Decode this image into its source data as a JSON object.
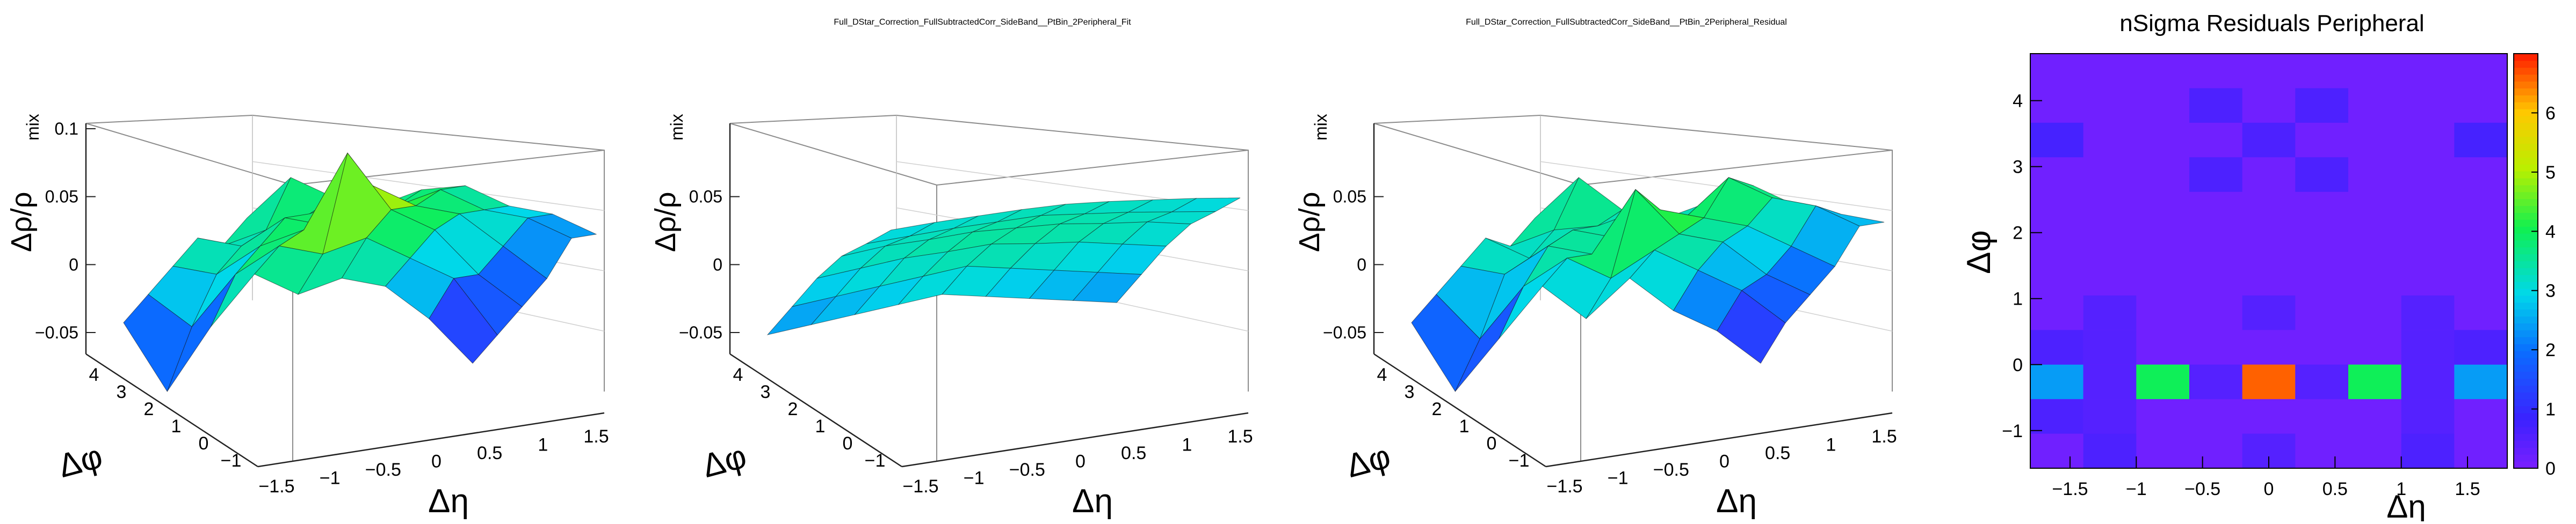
{
  "chart_data": [
    {
      "type": "surface3d",
      "title": "",
      "zlabel": "Δρ/ρ",
      "zlabel_sub": "mix",
      "xlabel": "Δη",
      "ylabel": "Δφ",
      "x_ticks": [
        "−1.5",
        "−1",
        "−0.5",
        "0",
        "0.5",
        "1",
        "1.5"
      ],
      "y_ticks": [
        "−1",
        "0",
        "1",
        "2",
        "3",
        "4"
      ],
      "z_ticks": [
        "−0.05",
        "0",
        "0.05",
        "0.1"
      ],
      "zlim": [
        -0.08,
        0.11
      ],
      "colorscale": [
        "#2a00ff",
        "#00c8ff",
        "#00ff6a",
        "#c8ff00",
        "#ff0000"
      ],
      "description_values": {
        "eta": [
          -1.6,
          -1.2,
          -0.8,
          -0.4,
          0,
          0.4,
          0.8,
          1.2,
          1.6
        ],
        "phi_rows": [
          [
            -0.01,
            -0.07,
            -0.02,
            0.02,
            0.0,
            0.01,
            0.0,
            -0.03,
            -0.07
          ],
          [
            0.0,
            -0.03,
            0.01,
            0.03,
            0.02,
            0.03,
            0.01,
            -0.01,
            -0.06
          ],
          [
            0.01,
            0.0,
            0.02,
            0.03,
            0.09,
            0.04,
            0.02,
            -0.02,
            -0.05
          ],
          [
            0.02,
            0.01,
            0.03,
            0.02,
            0.05,
            0.03,
            0.02,
            -0.01,
            -0.04
          ],
          [
            0.0,
            0.01,
            0.02,
            0.03,
            0.02,
            0.03,
            0.01,
            0.0,
            -0.02
          ],
          [
            0.01,
            0.04,
            0.02,
            0.01,
            0.02,
            0.02,
            0.0,
            -0.01,
            -0.03
          ]
        ]
      }
    },
    {
      "type": "surface3d",
      "title": "Full_DStar_Correction_FullSubtractedCorr_SideBand__PtBin_2Peripheral_Fit",
      "zlabel": "Δρ/ρ",
      "zlabel_sub": "mix",
      "xlabel": "Δη",
      "ylabel": "Δφ",
      "x_ticks": [
        "−1.5",
        "−1",
        "−0.5",
        "0",
        "0.5",
        "1",
        "1.5"
      ],
      "y_ticks": [
        "−1",
        "0",
        "1",
        "2",
        "3",
        "4"
      ],
      "z_ticks": [
        "−0.05",
        "0",
        "0.05"
      ],
      "zlim": [
        -0.08,
        0.11
      ],
      "description_values": {
        "eta": [
          -1.6,
          -1.2,
          -0.8,
          -0.4,
          0,
          0.4,
          0.8,
          1.2,
          1.6
        ],
        "phi_rows": [
          [
            -0.02,
            -0.015,
            -0.01,
            -0.005,
            0.0,
            -0.005,
            -0.01,
            -0.015,
            -0.02
          ],
          [
            -0.01,
            -0.005,
            0.0,
            0.005,
            0.01,
            0.005,
            0.0,
            -0.005,
            -0.01
          ],
          [
            0.0,
            0.005,
            0.01,
            0.012,
            0.015,
            0.012,
            0.01,
            0.005,
            0.0
          ],
          [
            0.005,
            0.01,
            0.012,
            0.015,
            0.015,
            0.015,
            0.012,
            0.01,
            0.005
          ],
          [
            0.002,
            0.005,
            0.008,
            0.01,
            0.012,
            0.01,
            0.008,
            0.005,
            0.002
          ],
          [
            0.0,
            0.003,
            0.005,
            0.007,
            0.008,
            0.007,
            0.005,
            0.003,
            0.0
          ]
        ]
      }
    },
    {
      "type": "surface3d",
      "title": "Full_DStar_Correction_FullSubtractedCorr_SideBand__PtBin_2Peripheral_Residual",
      "zlabel": "Δρ/ρ",
      "zlabel_sub": "mix",
      "xlabel": "Δη",
      "ylabel": "Δφ",
      "x_ticks": [
        "−1.5",
        "−1",
        "−0.5",
        "0",
        "0.5",
        "1",
        "1.5"
      ],
      "y_ticks": [
        "−1",
        "0",
        "1",
        "2",
        "3",
        "4"
      ],
      "z_ticks": [
        "−0.05",
        "0",
        "0.05"
      ],
      "zlim": [
        -0.08,
        0.11
      ],
      "description_values": {
        "eta": [
          -1.6,
          -1.2,
          -0.8,
          -0.4,
          0,
          0.4,
          0.8,
          1.2,
          1.6
        ],
        "phi_rows": [
          [
            -0.01,
            -0.07,
            -0.03,
            0.01,
            -0.02,
            0.01,
            -0.02,
            -0.04,
            -0.07
          ],
          [
            0.0,
            -0.04,
            0.0,
            0.02,
            0.0,
            0.02,
            0.0,
            -0.02,
            -0.05
          ],
          [
            0.01,
            0.0,
            0.02,
            0.01,
            0.06,
            0.02,
            0.01,
            -0.02,
            -0.04
          ],
          [
            0.02,
            0.0,
            0.02,
            0.01,
            0.03,
            0.02,
            0.01,
            -0.01,
            -0.03
          ],
          [
            0.0,
            0.01,
            0.01,
            0.02,
            0.01,
            0.04,
            0.02,
            0.01,
            -0.01
          ],
          [
            0.01,
            0.04,
            0.01,
            0.0,
            0.01,
            0.02,
            0.0,
            -0.01,
            -0.02
          ]
        ]
      }
    },
    {
      "type": "heatmap",
      "title": "nSigma Residuals Peripheral",
      "xlabel": "Δη",
      "ylabel": "Δφ",
      "x_ticks": [
        "−1.5",
        "−1",
        "−0.5",
        "0",
        "0.5",
        "1",
        "1.5"
      ],
      "y_ticks": [
        "−1",
        "0",
        "1",
        "2",
        "3",
        "4"
      ],
      "colorbar_ticks": [
        "0",
        "1",
        "2",
        "3",
        "4",
        "5",
        "6"
      ],
      "xlim": [
        -1.8,
        1.8
      ],
      "ylim": [
        -1.5708,
        4.7124
      ],
      "zlim": [
        0,
        7
      ],
      "x_edges": [
        -1.8,
        -1.4,
        -1.0,
        -0.6,
        -0.2,
        0.2,
        0.6,
        1.0,
        1.4,
        1.8
      ],
      "y_edges": [
        -1.5708,
        -1.0472,
        -0.5236,
        0.0,
        0.5236,
        1.0472,
        1.5708,
        2.0944,
        2.618,
        3.1416,
        3.6652,
        4.1888,
        4.7124
      ],
      "values": [
        [
          0,
          0.6,
          0,
          0,
          0.5,
          0,
          0,
          0.6,
          0
        ],
        [
          0.6,
          0.5,
          0,
          0,
          0,
          0,
          0,
          0.5,
          0
        ],
        [
          2.4,
          0.5,
          4.0,
          0.5,
          6.6,
          0.5,
          4.0,
          0.5,
          2.4
        ],
        [
          0.6,
          0.5,
          0,
          0,
          0,
          0,
          0,
          0.5,
          0.6
        ],
        [
          0,
          0.5,
          0,
          0,
          0.5,
          0,
          0,
          0.5,
          0
        ],
        [
          0,
          0,
          0,
          0,
          0,
          0,
          0,
          0,
          0
        ],
        [
          0,
          0,
          0,
          0,
          0,
          0,
          0,
          0,
          0
        ],
        [
          0,
          0,
          0,
          0,
          0,
          0,
          0,
          0,
          0
        ],
        [
          0,
          0,
          0,
          0.6,
          0,
          0.6,
          0,
          0,
          0
        ],
        [
          0.7,
          0,
          0,
          0,
          0.6,
          0,
          0,
          0,
          0.7
        ],
        [
          0,
          0,
          0,
          0.6,
          0,
          0.6,
          0,
          0,
          0
        ],
        [
          0,
          0,
          0,
          0,
          0,
          0,
          0,
          0,
          0
        ]
      ]
    }
  ]
}
